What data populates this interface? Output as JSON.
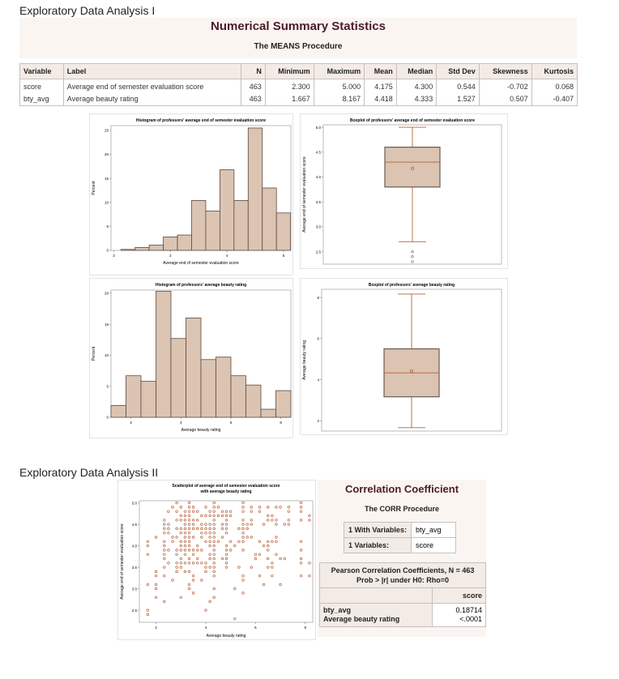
{
  "sections": {
    "first": "Exploratory Data Analysis I",
    "second": "Exploratory Data Analysis II"
  },
  "means": {
    "title": "Numerical Summary Statistics",
    "subtitle": "The MEANS Procedure",
    "columns": [
      "Variable",
      "Label",
      "N",
      "Minimum",
      "Maximum",
      "Mean",
      "Median",
      "Std Dev",
      "Skewness",
      "Kurtosis"
    ],
    "rows": [
      [
        "score",
        "Average end of semester evaluation score",
        "463",
        "2.300",
        "5.000",
        "4.175",
        "4.300",
        "0.544",
        "-0.702",
        "0.068"
      ],
      [
        "bty_avg",
        "Average beauty rating",
        "463",
        "1.667",
        "8.167",
        "4.418",
        "4.333",
        "1.527",
        "0.507",
        "-0.407"
      ]
    ]
  },
  "colors": {
    "bar_fill": "#dcc4b2",
    "bar_stroke": "#5a4a44",
    "box_line": "#b5613a",
    "marker": "#b5613a",
    "header_bg": "#fbf5f1",
    "title": "#4a1c28"
  },
  "chart_data": [
    {
      "type": "bar",
      "title": "Histogram of professors' average end of semester evaluation score",
      "xlabel": "Average end of semester evaluation score",
      "ylabel": "Percent",
      "bin_width": 0.25,
      "bin_centers": [
        2.25,
        2.5,
        2.75,
        3.0,
        3.25,
        3.5,
        3.75,
        4.0,
        4.25,
        4.5,
        4.75,
        5.0
      ],
      "values": [
        0.2,
        0.6,
        1.1,
        2.8,
        3.2,
        10.4,
        8.2,
        16.8,
        10.4,
        25.5,
        13.0,
        7.8
      ],
      "xlim": [
        1.95,
        5.13
      ],
      "ylim": [
        0,
        26
      ],
      "xticks": [
        2,
        3,
        4,
        5
      ],
      "yticks": [
        0,
        5,
        10,
        15,
        20,
        25
      ]
    },
    {
      "type": "box",
      "title": "Boxplot of professors' average end of semester evaluation score",
      "ylabel": "Average end of semester evaluation score",
      "whisker_low": 2.7,
      "q1": 3.8,
      "median": 4.3,
      "mean": 4.175,
      "q3": 4.6,
      "whisker_high": 5.0,
      "outliers": [
        2.5,
        2.4,
        2.3
      ],
      "ylim": [
        2.25,
        5.05
      ],
      "yticks": [
        "2.5",
        "3.0",
        "3.5",
        "4.0",
        "4.5",
        "5.0"
      ]
    },
    {
      "type": "bar",
      "title": "Histogram of professors' average beauty rating",
      "xlabel": "Average beauty rating",
      "ylabel": "Percent",
      "bin_width": 0.6,
      "bin_centers": [
        1.5,
        2.1,
        2.7,
        3.3,
        3.9,
        4.5,
        5.1,
        5.7,
        6.3,
        6.9,
        7.5,
        8.1
      ],
      "values": [
        1.9,
        6.7,
        5.8,
        20.3,
        12.7,
        16.0,
        9.3,
        9.7,
        6.7,
        5.2,
        1.3,
        4.3
      ],
      "xlim": [
        1.2,
        8.4
      ],
      "ylim": [
        0,
        20.5
      ],
      "xticks": [
        2,
        4,
        6,
        8
      ],
      "yticks": [
        0,
        5,
        10,
        15,
        20
      ]
    },
    {
      "type": "box",
      "title": "Boxplot of professors' average beauty rating",
      "ylabel": "Average beauty rating",
      "whisker_low": 1.667,
      "q1": 3.167,
      "median": 4.333,
      "mean": 4.418,
      "q3": 5.5,
      "whisker_high": 8.167,
      "outliers": [],
      "ylim": [
        1.5,
        8.4
      ],
      "yticks": [
        "2",
        "4",
        "6",
        "8"
      ]
    },
    {
      "type": "scatter",
      "title": "Scatterplot of average end of semester evaluation score",
      "subtitle": "with average beauty rating",
      "xlabel": "Average beauty rating",
      "ylabel": "Average end of semester evaluation score",
      "xlim": [
        1.33,
        8.3
      ],
      "ylim": [
        2.22,
        5.05
      ],
      "xticks": [
        2,
        4,
        6,
        8
      ],
      "yticks": [
        "2.5",
        "3.0",
        "3.5",
        "4.0",
        "4.5",
        "5.0"
      ],
      "columns": [
        {
          "x": 1.667,
          "y": [
            4.1,
            4.0,
            3.8,
            3.1,
            2.5,
            2.4
          ]
        },
        {
          "x": 2.0,
          "y": [
            4.2,
            3.4,
            3.3,
            3.1,
            3.0,
            2.8
          ]
        },
        {
          "x": 2.333,
          "y": [
            4.6,
            4.5,
            4.4,
            4.3,
            4.1,
            4.0,
            3.9,
            3.8,
            3.7,
            3.5,
            3.3,
            2.7
          ]
        },
        {
          "x": 2.5,
          "y": [
            4.8,
            4.5,
            4.4,
            4.3,
            3.9,
            3.6
          ]
        },
        {
          "x": 2.667,
          "y": [
            4.9,
            4.2,
            4.1,
            3.2
          ]
        },
        {
          "x": 2.833,
          "y": [
            5.0,
            4.8,
            4.6,
            4.4,
            4.2,
            3.9,
            3.8,
            3.6,
            3.5,
            3.4
          ]
        },
        {
          "x": 3.0,
          "y": [
            4.9,
            4.7,
            4.6,
            4.4,
            4.3,
            4.1,
            4.0,
            3.9,
            3.7,
            3.6,
            3.5,
            2.8
          ]
        },
        {
          "x": 3.167,
          "y": [
            4.8,
            4.7,
            4.6,
            4.5,
            4.4,
            4.3,
            4.2,
            4.1,
            4.0,
            3.9,
            3.8,
            3.6,
            3.4
          ]
        },
        {
          "x": 3.333,
          "y": [
            5.0,
            4.9,
            4.8,
            4.7,
            4.6,
            4.5,
            4.4,
            4.3,
            4.2,
            4.1,
            4.0,
            3.9,
            3.7,
            3.6,
            3.4,
            3.1,
            3.0
          ]
        },
        {
          "x": 3.5,
          "y": [
            4.9,
            4.8,
            4.6,
            4.5,
            4.4,
            4.2,
            3.9,
            3.8,
            3.6,
            3.3,
            3.2,
            2.9
          ]
        },
        {
          "x": 3.667,
          "y": [
            4.8,
            4.6,
            4.4,
            4.0,
            3.9,
            3.7,
            3.6
          ]
        },
        {
          "x": 3.833,
          "y": [
            4.7,
            4.5,
            4.4,
            4.3,
            4.2,
            3.9,
            3.6,
            3.2
          ]
        },
        {
          "x": 4.0,
          "y": [
            4.9,
            4.7,
            4.5,
            4.4,
            4.3,
            4.1,
            3.6,
            3.5,
            3.4,
            2.5
          ]
        },
        {
          "x": 4.167,
          "y": [
            4.8,
            4.7,
            4.5,
            4.4,
            4.3,
            4.2,
            4.1,
            4.0,
            3.8,
            3.7,
            3.5,
            2.7
          ]
        },
        {
          "x": 4.333,
          "y": [
            5.0,
            4.9,
            4.8,
            4.7,
            4.6,
            4.5,
            4.4,
            4.3,
            4.2,
            4.1,
            4.0,
            3.9,
            3.8,
            3.7,
            3.6,
            3.5,
            3.4,
            3.3,
            3.0,
            2.8
          ]
        },
        {
          "x": 4.5,
          "y": [
            4.9,
            4.7,
            4.1
          ]
        },
        {
          "x": 4.667,
          "y": [
            4.8,
            4.7,
            4.5,
            4.4,
            4.2,
            3.7
          ]
        },
        {
          "x": 4.833,
          "y": [
            4.8,
            4.7,
            4.6,
            4.5,
            4.4,
            4.3,
            4.0,
            3.9,
            3.8,
            3.7,
            3.6,
            3.5
          ]
        },
        {
          "x": 5.0,
          "y": [
            4.8,
            4.7,
            4.1,
            3.9
          ]
        },
        {
          "x": 5.167,
          "y": [
            4.0,
            3.0,
            2.3
          ]
        },
        {
          "x": 5.333,
          "y": [
            4.4,
            4.1,
            3.5
          ]
        },
        {
          "x": 5.5,
          "y": [
            5.0,
            4.9,
            4.8,
            4.6,
            4.5,
            4.4,
            4.3,
            4.2,
            4.1,
            3.9,
            3.3,
            3.2,
            2.9
          ]
        },
        {
          "x": 5.667,
          "y": [
            4.5,
            4.4,
            4.2
          ]
        },
        {
          "x": 5.833,
          "y": [
            4.9,
            4.8,
            4.6,
            4.5,
            4.2,
            3.5
          ]
        },
        {
          "x": 6.0,
          "y": [
            3.8,
            3.7
          ]
        },
        {
          "x": 6.167,
          "y": [
            4.9,
            4.8,
            4.1,
            3.8,
            3.3
          ]
        },
        {
          "x": 6.333,
          "y": [
            4.5,
            4.0,
            3.1
          ]
        },
        {
          "x": 6.5,
          "y": [
            4.9,
            4.7,
            4.6,
            4.1,
            4.0,
            3.9,
            3.7,
            3.5
          ]
        },
        {
          "x": 6.667,
          "y": [
            4.7,
            4.6,
            4.1,
            3.6,
            3.5,
            3.3
          ]
        },
        {
          "x": 6.833,
          "y": [
            4.9,
            4.6,
            4.5,
            4.2,
            4.1,
            3.8
          ]
        },
        {
          "x": 7.0,
          "y": [
            4.9,
            3.7,
            3.1
          ]
        },
        {
          "x": 7.167,
          "y": [
            4.5,
            3.7
          ]
        },
        {
          "x": 7.333,
          "y": [
            4.9,
            4.8,
            4.6,
            4.5
          ]
        },
        {
          "x": 7.833,
          "y": [
            5.0,
            4.9,
            4.8,
            4.6,
            4.1,
            3.9,
            3.7,
            3.6,
            3.3
          ]
        },
        {
          "x": 8.167,
          "y": [
            4.7,
            4.6,
            3.6,
            3.3
          ]
        }
      ]
    }
  ],
  "corr": {
    "title": "Correlation Coefficient",
    "subtitle": "The CORR Procedure",
    "with_label": "1 With Variables:",
    "with_value": "bty_avg",
    "var_label": "1 Variables:",
    "var_value": "score",
    "pearson_header": "Pearson Correlation Coefficients, N = 463",
    "pearson_sub": "Prob > |r| under H0: Rho=0",
    "col_header": "score",
    "row_var": "bty_avg",
    "row_label": "Average beauty rating",
    "r": "0.18714",
    "p": "<.0001"
  }
}
